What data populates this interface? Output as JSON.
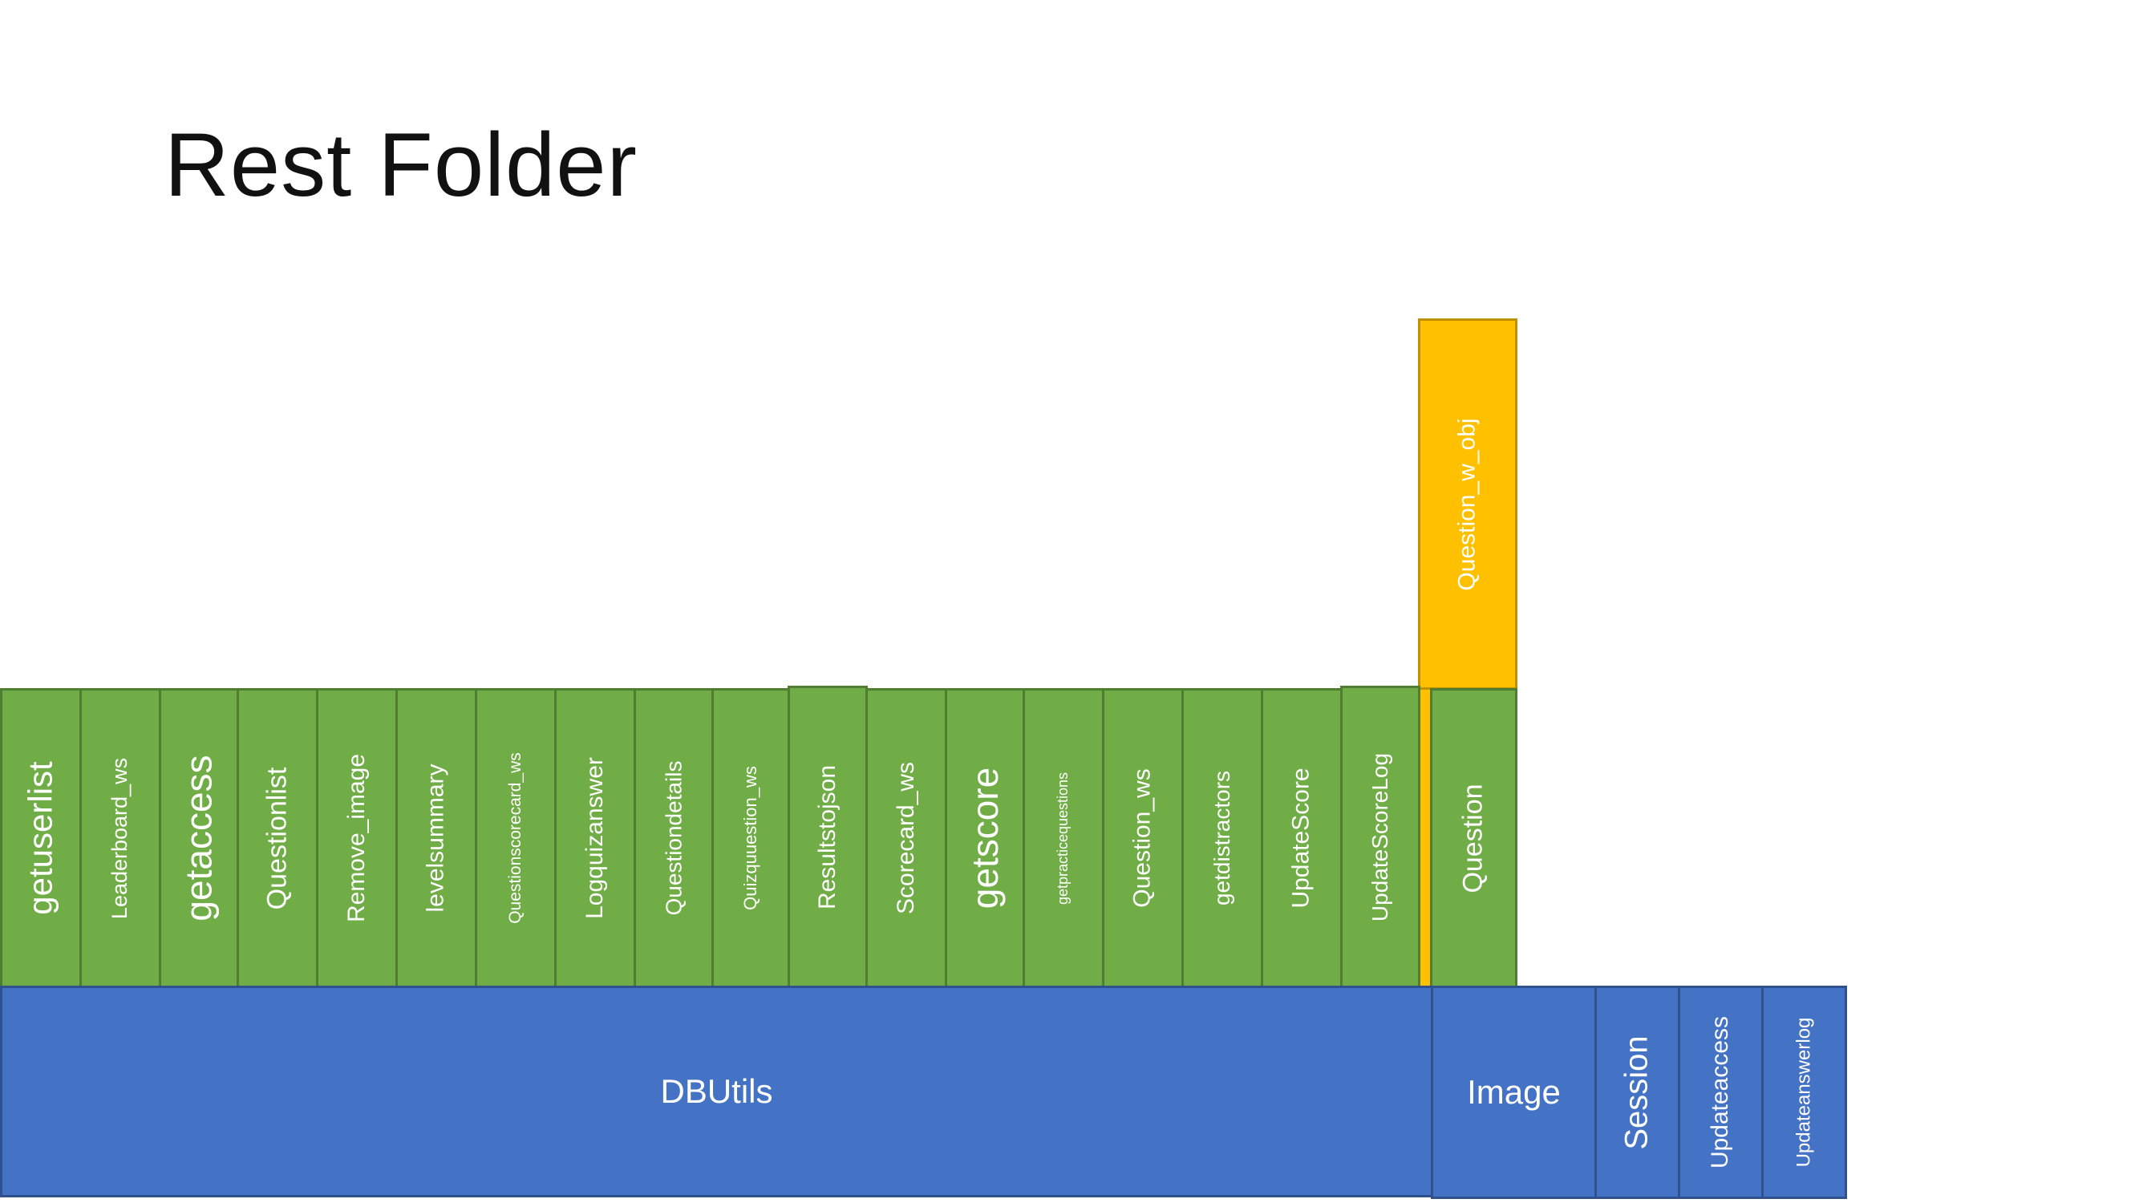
{
  "title": "Rest Folder",
  "colors": {
    "green": "#70ad47",
    "blue": "#4472c4",
    "gold": "#ffc000"
  },
  "green_modules": [
    "getuserlist",
    "Leaderboard_ws",
    "getaccess",
    "Questionlist",
    "Remove_image",
    "levelsummary",
    "Questionscorecard_ws",
    "Logquizanswer",
    "Questiondetails",
    "Quizquuestion_ws",
    "Resultstojson",
    "Scorecard_ws",
    "getscore",
    "getpracticequestions",
    "Question_ws",
    "getdistractors",
    "UpdateScore",
    "UpdateScoreLog",
    "Question"
  ],
  "gold_module": "Question_w_obj",
  "blue_modules": {
    "dbutils": "DBUtils",
    "image": "Image",
    "session": "Session",
    "updateaccess": "Updateaccess",
    "updateanswerlog": "Updateanswerlog"
  }
}
